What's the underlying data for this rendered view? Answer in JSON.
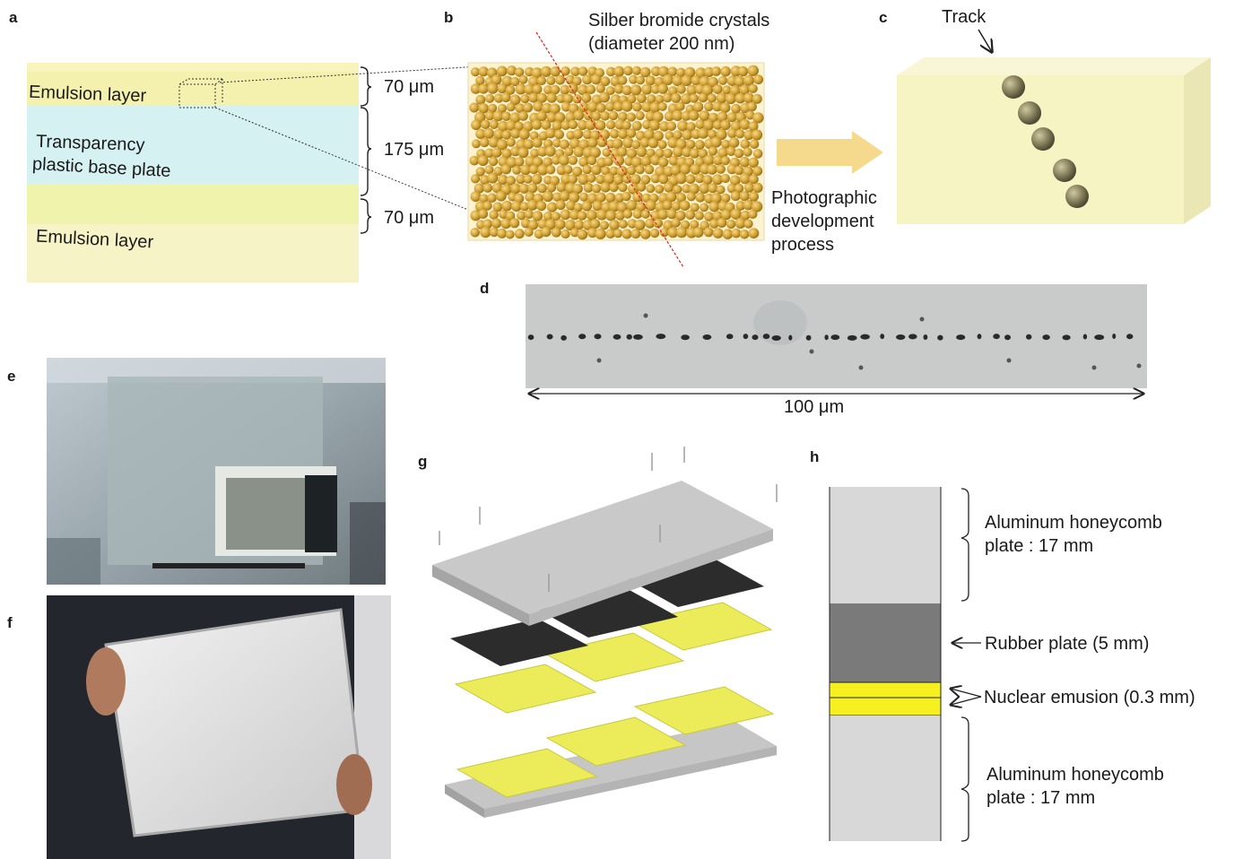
{
  "panel_letters": [
    "a",
    "b",
    "c",
    "d",
    "e",
    "f",
    "g",
    "h"
  ],
  "panel_a": {
    "top_layer": "Emulsion layer",
    "base_line1": "Transparency",
    "base_line2": "plastic base plate",
    "bottom_layer": "Emulsion layer",
    "dim_top": "70 μm",
    "dim_mid": "175 μm",
    "dim_bottom": "70 μm",
    "colors": {
      "emulsion": "#f3efa6",
      "base": "#cfeef0"
    }
  },
  "panel_b": {
    "title_line1": "Silber bromide crystals",
    "title_line2": "(diameter 200 nm)",
    "colors": {
      "crystal": "#d4a437",
      "crystal_edge": "#9c7418"
    }
  },
  "arrow": {
    "line1": "Photographic",
    "line2": "development",
    "line3": "process",
    "color": "#f5d98c"
  },
  "panel_c": {
    "track_label": "Track",
    "colors": {
      "block": "#f7f4c4",
      "grain": "#8a8360"
    }
  },
  "panel_d": {
    "scale_label": "100 μm"
  },
  "panel_e": {
    "description_icon": "photo-emulsion-film"
  },
  "panel_f": {
    "description_icon": "photo-aluminum-plate"
  },
  "panel_h": {
    "upper_plate_line1": "Aluminum honeycomb",
    "upper_plate_line2": "plate : 17 mm",
    "rubber": "Rubber plate (5 mm)",
    "emulsion": "Nuclear emusion (0.3 mm)",
    "lower_plate_line1": "Aluminum honeycomb",
    "lower_plate_line2": "plate : 17 mm",
    "colors": {
      "aluminum": "#d8d8d8",
      "rubber": "#7a7a7a",
      "emulsion": "#f7f020"
    }
  }
}
